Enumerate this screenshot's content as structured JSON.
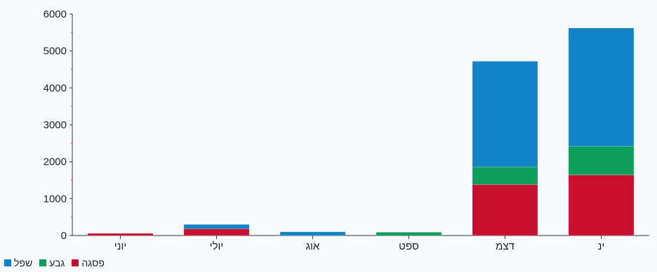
{
  "chart_data": {
    "type": "bar",
    "stacked": true,
    "categories": [
      "יוני",
      "יולי",
      "אוג",
      "ספט",
      "דצמ",
      "ינ"
    ],
    "series": [
      {
        "name": "פסגה",
        "color": "#c8102e",
        "values": [
          60,
          180,
          0,
          0,
          1380,
          1640
        ]
      },
      {
        "name": "גבע",
        "color": "#0e9e5c",
        "values": [
          0,
          0,
          0,
          90,
          480,
          780
        ]
      },
      {
        "name": "שפל",
        "color": "#1283c6",
        "values": [
          0,
          120,
          100,
          0,
          2860,
          3200
        ]
      }
    ],
    "ylim": [
      0,
      6000
    ],
    "yticks": [
      0,
      1000,
      2000,
      3000,
      4000,
      5000,
      6000
    ],
    "grid": false,
    "legend_position": "bottom-left"
  }
}
